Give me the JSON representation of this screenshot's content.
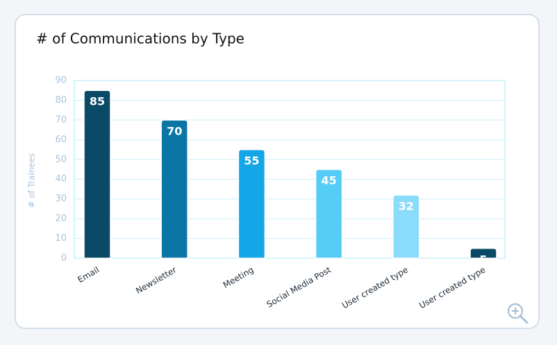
{
  "chart_data": {
    "type": "bar",
    "title": "# of Communications by Type",
    "y_label": "# of Trainees",
    "categories": [
      "Email",
      "Newsletter",
      "Meeting",
      "Social Media Post",
      "User created type",
      "User created type"
    ],
    "values": [
      85,
      70,
      55,
      45,
      32,
      5
    ],
    "colors": [
      "#0a4a66",
      "#0b76a6",
      "#14a6e6",
      "#55cdf6",
      "#8bdcfb",
      "#0a4a66"
    ],
    "ylim": [
      0,
      90
    ],
    "yticks": [
      0,
      10,
      20,
      30,
      40,
      50,
      60,
      70,
      80,
      90
    ],
    "grid": true
  }
}
